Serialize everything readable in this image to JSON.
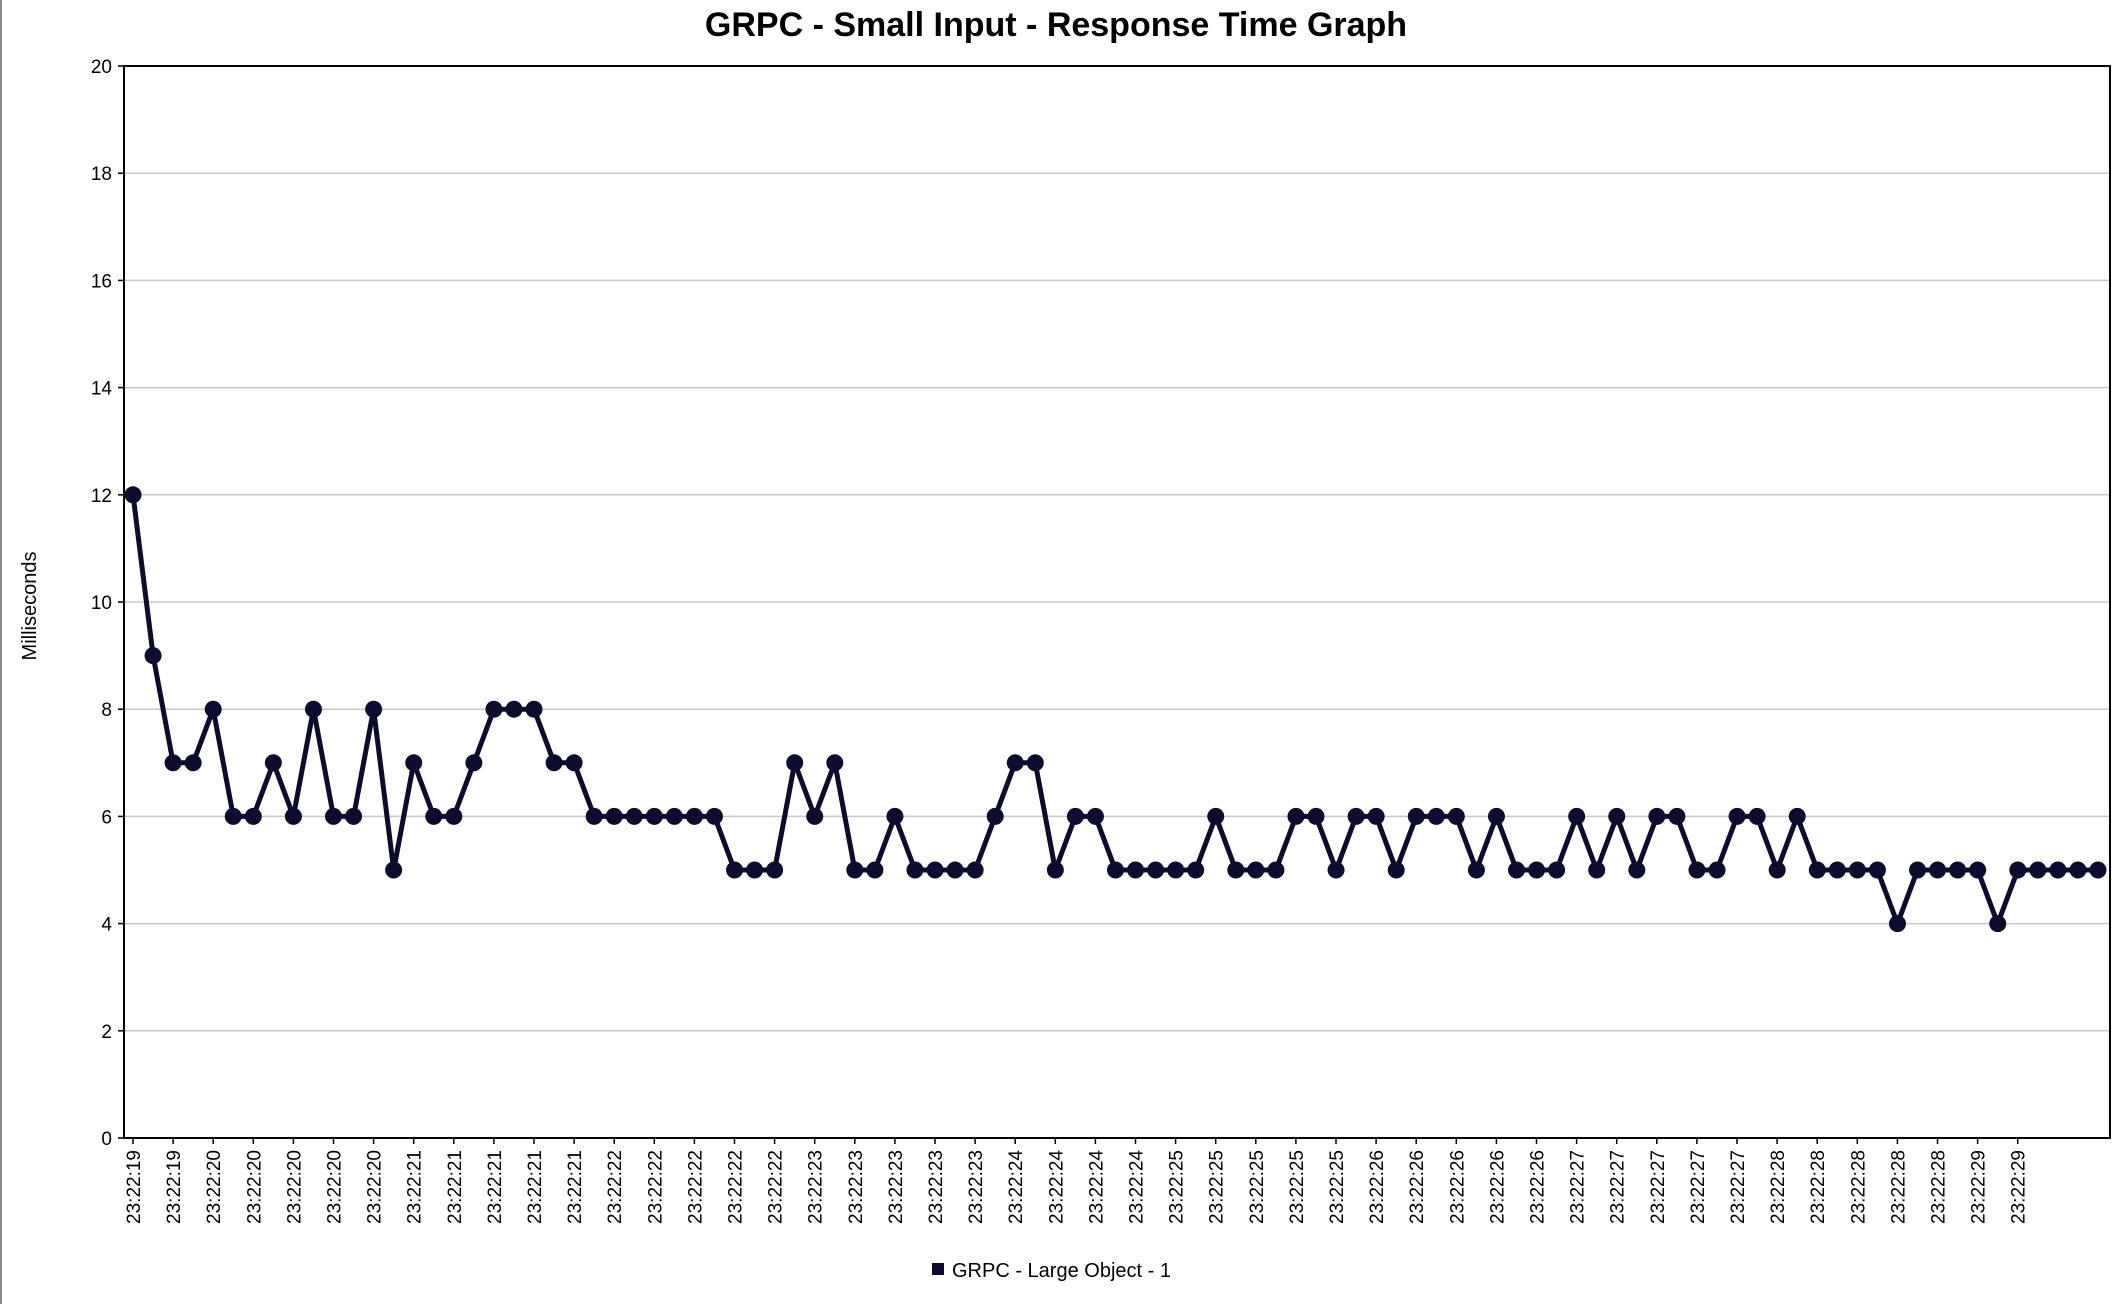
{
  "chart_data": {
    "type": "line",
    "title": "GRPC - Small Input - Response Time Graph",
    "ylabel": "Milliseconds",
    "xlabel": "",
    "ylim": [
      0,
      20
    ],
    "yticks": [
      0,
      2,
      4,
      6,
      8,
      10,
      12,
      14,
      16,
      18,
      20
    ],
    "grid": true,
    "legend_placement": "bottom-center",
    "x_tick_labels": [
      "23:22:19",
      "23:22:19",
      "23:22:20",
      "23:22:20",
      "23:22:20",
      "23:22:20",
      "23:22:20",
      "23:22:21",
      "23:22:21",
      "23:22:21",
      "23:22:21",
      "23:22:21",
      "23:22:22",
      "23:22:22",
      "23:22:22",
      "23:22:22",
      "23:22:22",
      "23:22:23",
      "23:22:23",
      "23:22:23",
      "23:22:23",
      "23:22:23",
      "23:22:24",
      "23:22:24",
      "23:22:24",
      "23:22:24",
      "23:22:25",
      "23:22:25",
      "23:22:25",
      "23:22:25",
      "23:22:25",
      "23:22:26",
      "23:22:26",
      "23:22:26",
      "23:22:26",
      "23:22:26",
      "23:22:27",
      "23:22:27",
      "23:22:27",
      "23:22:27",
      "23:22:27",
      "23:22:28",
      "23:22:28",
      "23:22:28",
      "23:22:28",
      "23:22:28",
      "23:22:29",
      "23:22:29"
    ],
    "series": [
      {
        "name": "GRPC - Large Object - 1",
        "color": "#0d0b2e",
        "values": [
          12,
          9,
          7,
          7,
          8,
          6,
          6,
          7,
          6,
          8,
          6,
          6,
          8,
          5,
          7,
          6,
          6,
          7,
          8,
          8,
          8,
          7,
          7,
          6,
          6,
          6,
          6,
          6,
          6,
          6,
          5,
          5,
          5,
          7,
          6,
          7,
          5,
          5,
          6,
          5,
          5,
          5,
          5,
          6,
          7,
          7,
          5,
          6,
          6,
          5,
          5,
          5,
          5,
          5,
          6,
          5,
          5,
          5,
          6,
          6,
          5,
          6,
          6,
          5,
          6,
          6,
          6,
          5,
          6,
          5,
          5,
          5,
          6,
          5,
          6,
          5,
          6,
          6,
          5,
          5,
          6,
          6,
          5,
          6,
          5,
          5,
          5,
          5,
          4,
          5,
          5,
          5,
          5,
          4,
          5,
          5,
          5,
          5,
          5
        ]
      }
    ]
  }
}
